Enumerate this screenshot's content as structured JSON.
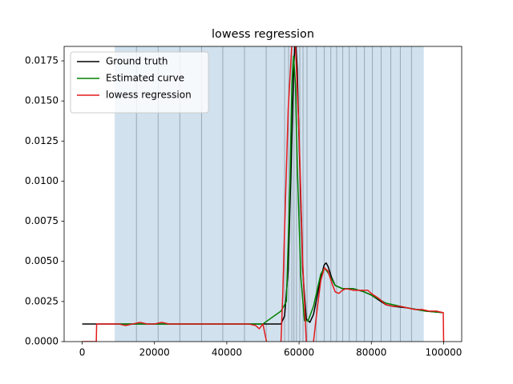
{
  "chart_data": {
    "type": "line",
    "title": "lowess regression",
    "xlim": [
      -5000,
      105000
    ],
    "ylim": [
      0,
      0.0184
    ],
    "xticks": [
      0,
      20000,
      40000,
      60000,
      80000,
      100000
    ],
    "yticks": [
      {
        "value": 0,
        "label": "0.0000"
      },
      {
        "value": 0.0025,
        "label": "0.0025"
      },
      {
        "value": 0.005,
        "label": "0.0050"
      },
      {
        "value": 0.0075,
        "label": "0.0075"
      },
      {
        "value": 0.01,
        "label": "0.0100"
      },
      {
        "value": 0.0125,
        "label": "0.0125"
      },
      {
        "value": 0.015,
        "label": "0.0150"
      },
      {
        "value": 0.0175,
        "label": "0.0175"
      }
    ],
    "span": [
      9000,
      94500
    ],
    "span_color": "#d1e1ed",
    "vlines": [
      15000,
      21000,
      27000,
      33000,
      38900,
      44900,
      50900,
      56000,
      57100,
      58000,
      58600,
      59300,
      60200,
      61100,
      62200,
      64800,
      67000,
      68800,
      70400,
      72100,
      73900,
      75900,
      78100,
      80300,
      82700,
      85400,
      88000,
      91100
    ],
    "vline_color": "#8a9aa6",
    "legend": "upper left",
    "series": [
      {
        "name": "Ground truth",
        "color": "#000000",
        "x": [
          0,
          55000,
          56000,
          57000,
          58000,
          58500,
          59000,
          59500,
          60000,
          61000,
          62000,
          63000,
          64000,
          65000,
          66000,
          67000,
          67500,
          68000,
          69000,
          70000,
          72000,
          75000,
          78000,
          80000,
          82000,
          84000,
          86000,
          90000,
          95000,
          100000
        ],
        "values": [
          0.0011,
          0.0011,
          0.0016,
          0.0045,
          0.0125,
          0.017,
          0.019,
          0.017,
          0.0125,
          0.0045,
          0.0014,
          0.0012,
          0.0017,
          0.0028,
          0.004,
          0.0048,
          0.0049,
          0.0047,
          0.004,
          0.0035,
          0.0033,
          0.0033,
          0.0031,
          0.0029,
          0.0026,
          0.0023,
          0.0022,
          0.0021,
          0.0019,
          0.0018
        ]
      },
      {
        "name": "Estimated curve",
        "color": "#008000",
        "x": [
          9000,
          20000,
          30000,
          40000,
          48000,
          50000,
          55000,
          56500,
          57500,
          58000,
          58500,
          59000,
          59500,
          60500,
          61500,
          62500,
          64000,
          65000,
          66000,
          67000,
          68000,
          70000,
          72000,
          75000,
          78000,
          80000,
          84000,
          90000,
          95000,
          100000
        ],
        "values": [
          0.0011,
          0.0011,
          0.0011,
          0.0011,
          0.0011,
          0.0011,
          0.0019,
          0.0025,
          0.01,
          0.016,
          0.0178,
          0.016,
          0.011,
          0.004,
          0.0013,
          0.0013,
          0.0022,
          0.0032,
          0.0042,
          0.0046,
          0.0043,
          0.0035,
          0.0033,
          0.0033,
          0.0031,
          0.0029,
          0.0024,
          0.0021,
          0.0019,
          0.0018
        ]
      },
      {
        "name": "lowess regression",
        "color": "#e41a1c",
        "x": [
          0,
          3900,
          4000,
          6000,
          8000,
          10000,
          12000,
          14000,
          16000,
          18000,
          20000,
          22000,
          24000,
          26000,
          28000,
          30000,
          32000,
          34000,
          36000,
          38000,
          40000,
          42000,
          44000,
          46000,
          48000,
          49000,
          50000,
          51000,
          52000,
          54000,
          55000,
          55500,
          56000,
          57000,
          58000,
          58500,
          59000,
          60000,
          61000,
          62000,
          63000,
          64000,
          65000,
          66000,
          67000,
          68000,
          69000,
          70000,
          71000,
          72000,
          73000,
          75000,
          77000,
          79000,
          80000,
          82000,
          84000,
          86000,
          88000,
          90000,
          92000,
          94000,
          96000,
          98000,
          99900,
          100000
        ],
        "values": [
          0,
          0,
          0.0011,
          0.0011,
          0.0011,
          0.0011,
          0.001,
          0.0011,
          0.0012,
          0.0011,
          0.0011,
          0.0012,
          0.0011,
          0.0011,
          0.0011,
          0.0011,
          0.0011,
          0.0011,
          0.0011,
          0.0011,
          0.0011,
          0.0011,
          0.0011,
          0.0011,
          0.001,
          0.0008,
          0.0011,
          0,
          -0.003,
          -0.003,
          0,
          0.003,
          0.007,
          0.0145,
          0.0185,
          0.019,
          0.0185,
          0.013,
          0.005,
          0,
          -0.002,
          0,
          0.002,
          0.0038,
          0.0046,
          0.0044,
          0.0037,
          0.0031,
          0.003,
          0.0032,
          0.0033,
          0.0032,
          0.0032,
          0.0032,
          0.003,
          0.0027,
          0.0023,
          0.0022,
          0.0022,
          0.0021,
          0.002,
          0.002,
          0.0019,
          0.0019,
          0.0018,
          0
        ]
      }
    ]
  }
}
